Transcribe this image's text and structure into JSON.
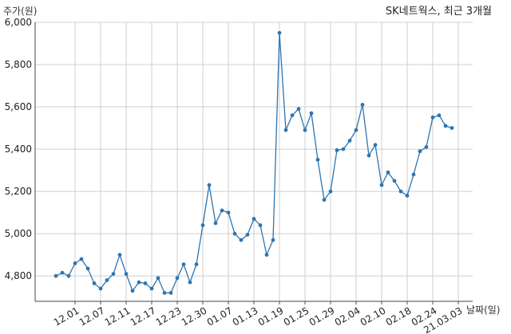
{
  "chart_data": {
    "type": "line",
    "title": "SK네트웍스, 최근 3개월",
    "ylabel": "주가(원)",
    "xlabel": "날짜(일)",
    "ylim": [
      4680,
      6000
    ],
    "yticks": [
      4800,
      5000,
      5200,
      5400,
      5600,
      5800,
      6000
    ],
    "ytick_labels": [
      "4,800",
      "5,000",
      "5,200",
      "5,400",
      "5,600",
      "5,800",
      "6,000"
    ],
    "x_tick_labels": [
      "12.01",
      "12.07",
      "12.11",
      "12.17",
      "12.23",
      "12.30",
      "01.07",
      "01.13",
      "01.19",
      "01.25",
      "01.29",
      "02.04",
      "02.10",
      "02.18",
      "02.24",
      "21.03.03"
    ],
    "x_tick_index": [
      3,
      7,
      11,
      15,
      19,
      23,
      27,
      31,
      35,
      39,
      43,
      47,
      51,
      55,
      59,
      63
    ],
    "grid": true,
    "color": "#2e75b0",
    "series": [
      {
        "values": [
          4800,
          4815,
          4800,
          4860,
          4880,
          4835,
          4765,
          4740,
          4780,
          4810,
          4900,
          4810,
          4730,
          4770,
          4765,
          4740,
          4790,
          4720,
          4720,
          4790,
          4855,
          4770,
          4855,
          5040,
          5230,
          5050,
          5110,
          5100,
          5000,
          4970,
          4995,
          5070,
          5040,
          4900,
          4970,
          5950,
          5490,
          5560,
          5590,
          5490,
          5570,
          5350,
          5160,
          5200,
          5395,
          5400,
          5440,
          5490,
          5610,
          5370,
          5420,
          5230,
          5290,
          5250,
          5200,
          5180,
          5280,
          5390,
          5410,
          5550,
          5560,
          5510,
          5500
        ]
      }
    ]
  }
}
